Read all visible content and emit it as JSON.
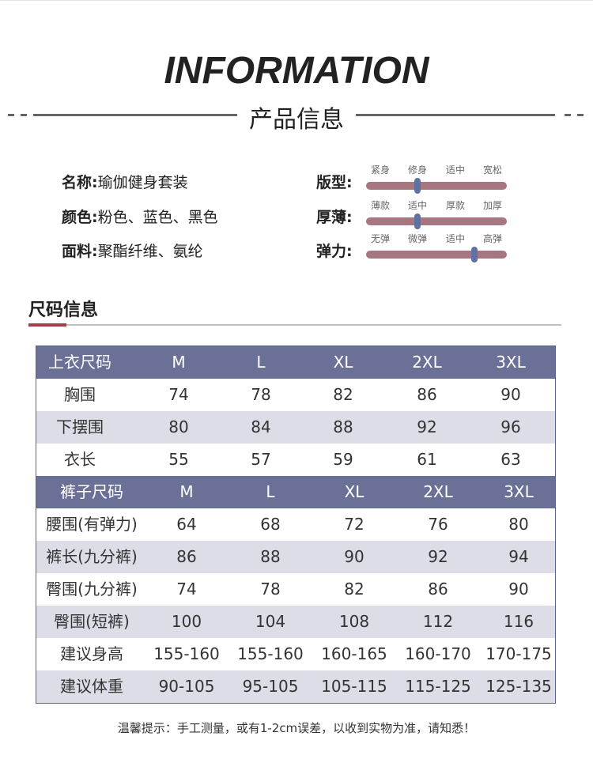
{
  "header": {
    "title": "INFORMATION",
    "section_title": "产品信息"
  },
  "product": {
    "name_key": "名称:",
    "name_val": "瑜伽健身套装",
    "color_key": "颜色:",
    "color_val": "粉色、蓝色、黑色",
    "fabric_key": "面料:",
    "fabric_val": "聚酯纤维、氨纶"
  },
  "attributes": [
    {
      "key": "版型:",
      "options": [
        "紧身",
        "修身",
        "适中",
        "宽松"
      ],
      "selected_index": 1
    },
    {
      "key": "厚薄:",
      "options": [
        "薄款",
        "适中",
        "厚款",
        "加厚"
      ],
      "selected_index": 1
    },
    {
      "key": "弹力:",
      "options": [
        "无弹",
        "微弹",
        "适中",
        "高弹"
      ],
      "selected_index": 2.5
    }
  ],
  "size_section_title": "尺码信息",
  "tops_table": {
    "header": [
      "上衣尺码",
      "M",
      "L",
      "XL",
      "2XL",
      "3XL"
    ],
    "rows": [
      [
        "胸围",
        "74",
        "78",
        "82",
        "86",
        "90"
      ],
      [
        "下摆围",
        "80",
        "84",
        "88",
        "92",
        "96"
      ],
      [
        "衣长",
        "55",
        "57",
        "59",
        "61",
        "63"
      ]
    ]
  },
  "pants_table": {
    "header": [
      "裤子尺码",
      "M",
      "L",
      "XL",
      "2XL",
      "3XL"
    ],
    "rows": [
      [
        "腰围(有弹力)",
        "64",
        "68",
        "72",
        "76",
        "80"
      ],
      [
        "裤长(九分裤)",
        "86",
        "88",
        "90",
        "92",
        "94"
      ],
      [
        "臀围(九分裤)",
        "74",
        "78",
        "82",
        "86",
        "90"
      ],
      [
        "臀围(短裤)",
        "100",
        "104",
        "108",
        "112",
        "116"
      ],
      [
        "建议身高",
        "155-160",
        "155-160",
        "160-165",
        "160-170",
        "170-175"
      ],
      [
        "建议体重",
        "90-105",
        "95-105",
        "105-115",
        "115-125",
        "125-135"
      ]
    ]
  },
  "footer_note": "温馨提示：手工测量，或有1-2cm误差，以收到实物为准，请知悉！",
  "colors": {
    "header_row": "#6b7097",
    "shaded_row": "#dcdde6",
    "slider_bar": "#a67780",
    "slider_knob": "#5f72a4",
    "accent": "#a83c4a"
  }
}
